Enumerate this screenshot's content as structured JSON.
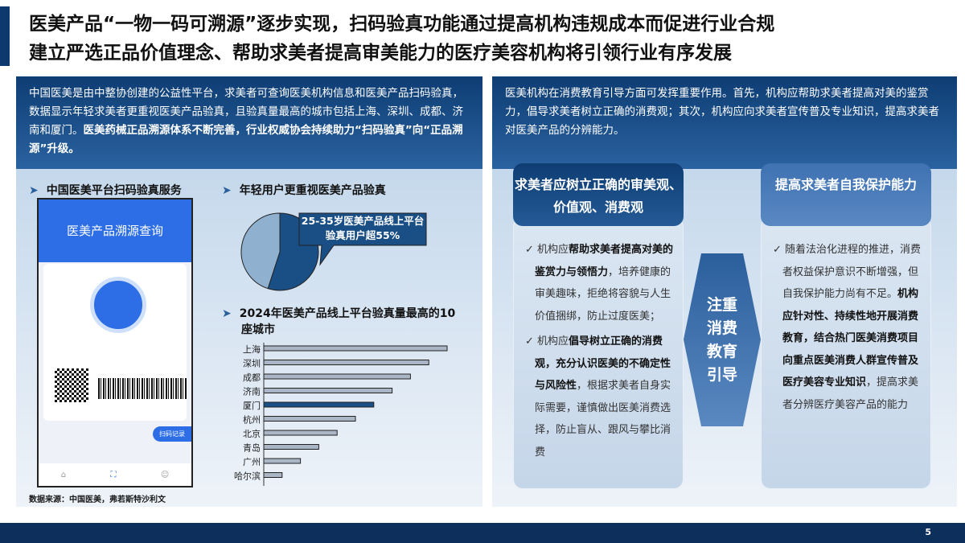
{
  "header": {
    "title_line1": "医美产品“一物一码可溯源”逐步实现，扫码验真功能通过提高机构违规成本而促进行业合规",
    "title_line2": "建立严选正品价值理念、帮助求美者提高审美能力的医疗美容机构将引领行业有序发展"
  },
  "left": {
    "intro_normal": "中国医美是由中整协创建的公益性平台，求美者可查询医美机构信息和医美产品扫码验真，数据显示年轻求美者更重视医美产品验真，且验真量最高的城市包括上海、深圳、成都、济南和厦门。",
    "intro_bold": "医美药械正品溯源体系不断完善，行业权威协会持续助力“扫码验真”向“正品溯源”升级。",
    "sec1": "中国医美平台扫码验真服务",
    "sec2": "年轻用户更重视医美产品验真",
    "sec3": "2024年医美产品线上平台验真量最高的10座城市",
    "phone": {
      "title": "医美产品溯源查询",
      "record": "扫码记录"
    },
    "source": "数据来源：中国医美，弗若斯特沙利文"
  },
  "chart_data": [
    {
      "type": "pie",
      "values": [
        55,
        45
      ],
      "colors": [
        "#1a4f86",
        "#8fb0cf"
      ],
      "annotation": "25-35岁医美产品线上平台验真用户超55%"
    },
    {
      "type": "bar",
      "orientation": "horizontal",
      "categories": [
        "上海",
        "深圳",
        "成都",
        "济南",
        "厦门",
        "杭州",
        "北京",
        "青岛",
        "广州",
        "哈尔滨"
      ],
      "values": [
        10,
        9,
        8,
        7,
        6,
        5,
        4,
        3,
        2,
        1
      ],
      "highlight": "厦门",
      "colors": {
        "bar": "#aab6c6",
        "highlight": "#1a4f86"
      }
    }
  ],
  "right": {
    "intro": "医美机构在消费教育引导方面可发挥重要作用。首先，机构应帮助求美者提高对美的鉴赏力，倡导求美者树立正确的消费观；其次，机构应向求美者宣传普及专业知识，提高求美者对医美产品的分辨能力。",
    "box1_title": "求美者应树立正确的审美观、价值观、消费观",
    "box2_title": "提高求美者自我保护能力",
    "center": "注重消费教育引导",
    "b1": [
      {
        "pre": "机构应",
        "bold": "帮助求美者提高对美的鉴赏力与领悟力",
        "post": "，培养健康的审美趣味，拒绝将容貌与人生价值捆绑，防止过度医美；"
      },
      {
        "pre": "机构应",
        "bold": "倡导树立正确的消费观，充分认识医美的不确定性与风险性",
        "post": "，根据求美者自身实际需要，谨慎做出医美消费选择，防止盲从、跟风与攀比消费"
      }
    ],
    "b2": {
      "pre": "随着法治化进程的推进，消费者权益保护意识不断增强，但自我保护能力尚有不足。",
      "bold": "机构应针对性、持续性地开展消费教育，结合热门医美消费项目向重点医美消费人群宣传普及医疗美容专业知识",
      "post": "，提高求美者分辨医疗美容产品的能力"
    }
  },
  "footer": {
    "page": "5"
  }
}
